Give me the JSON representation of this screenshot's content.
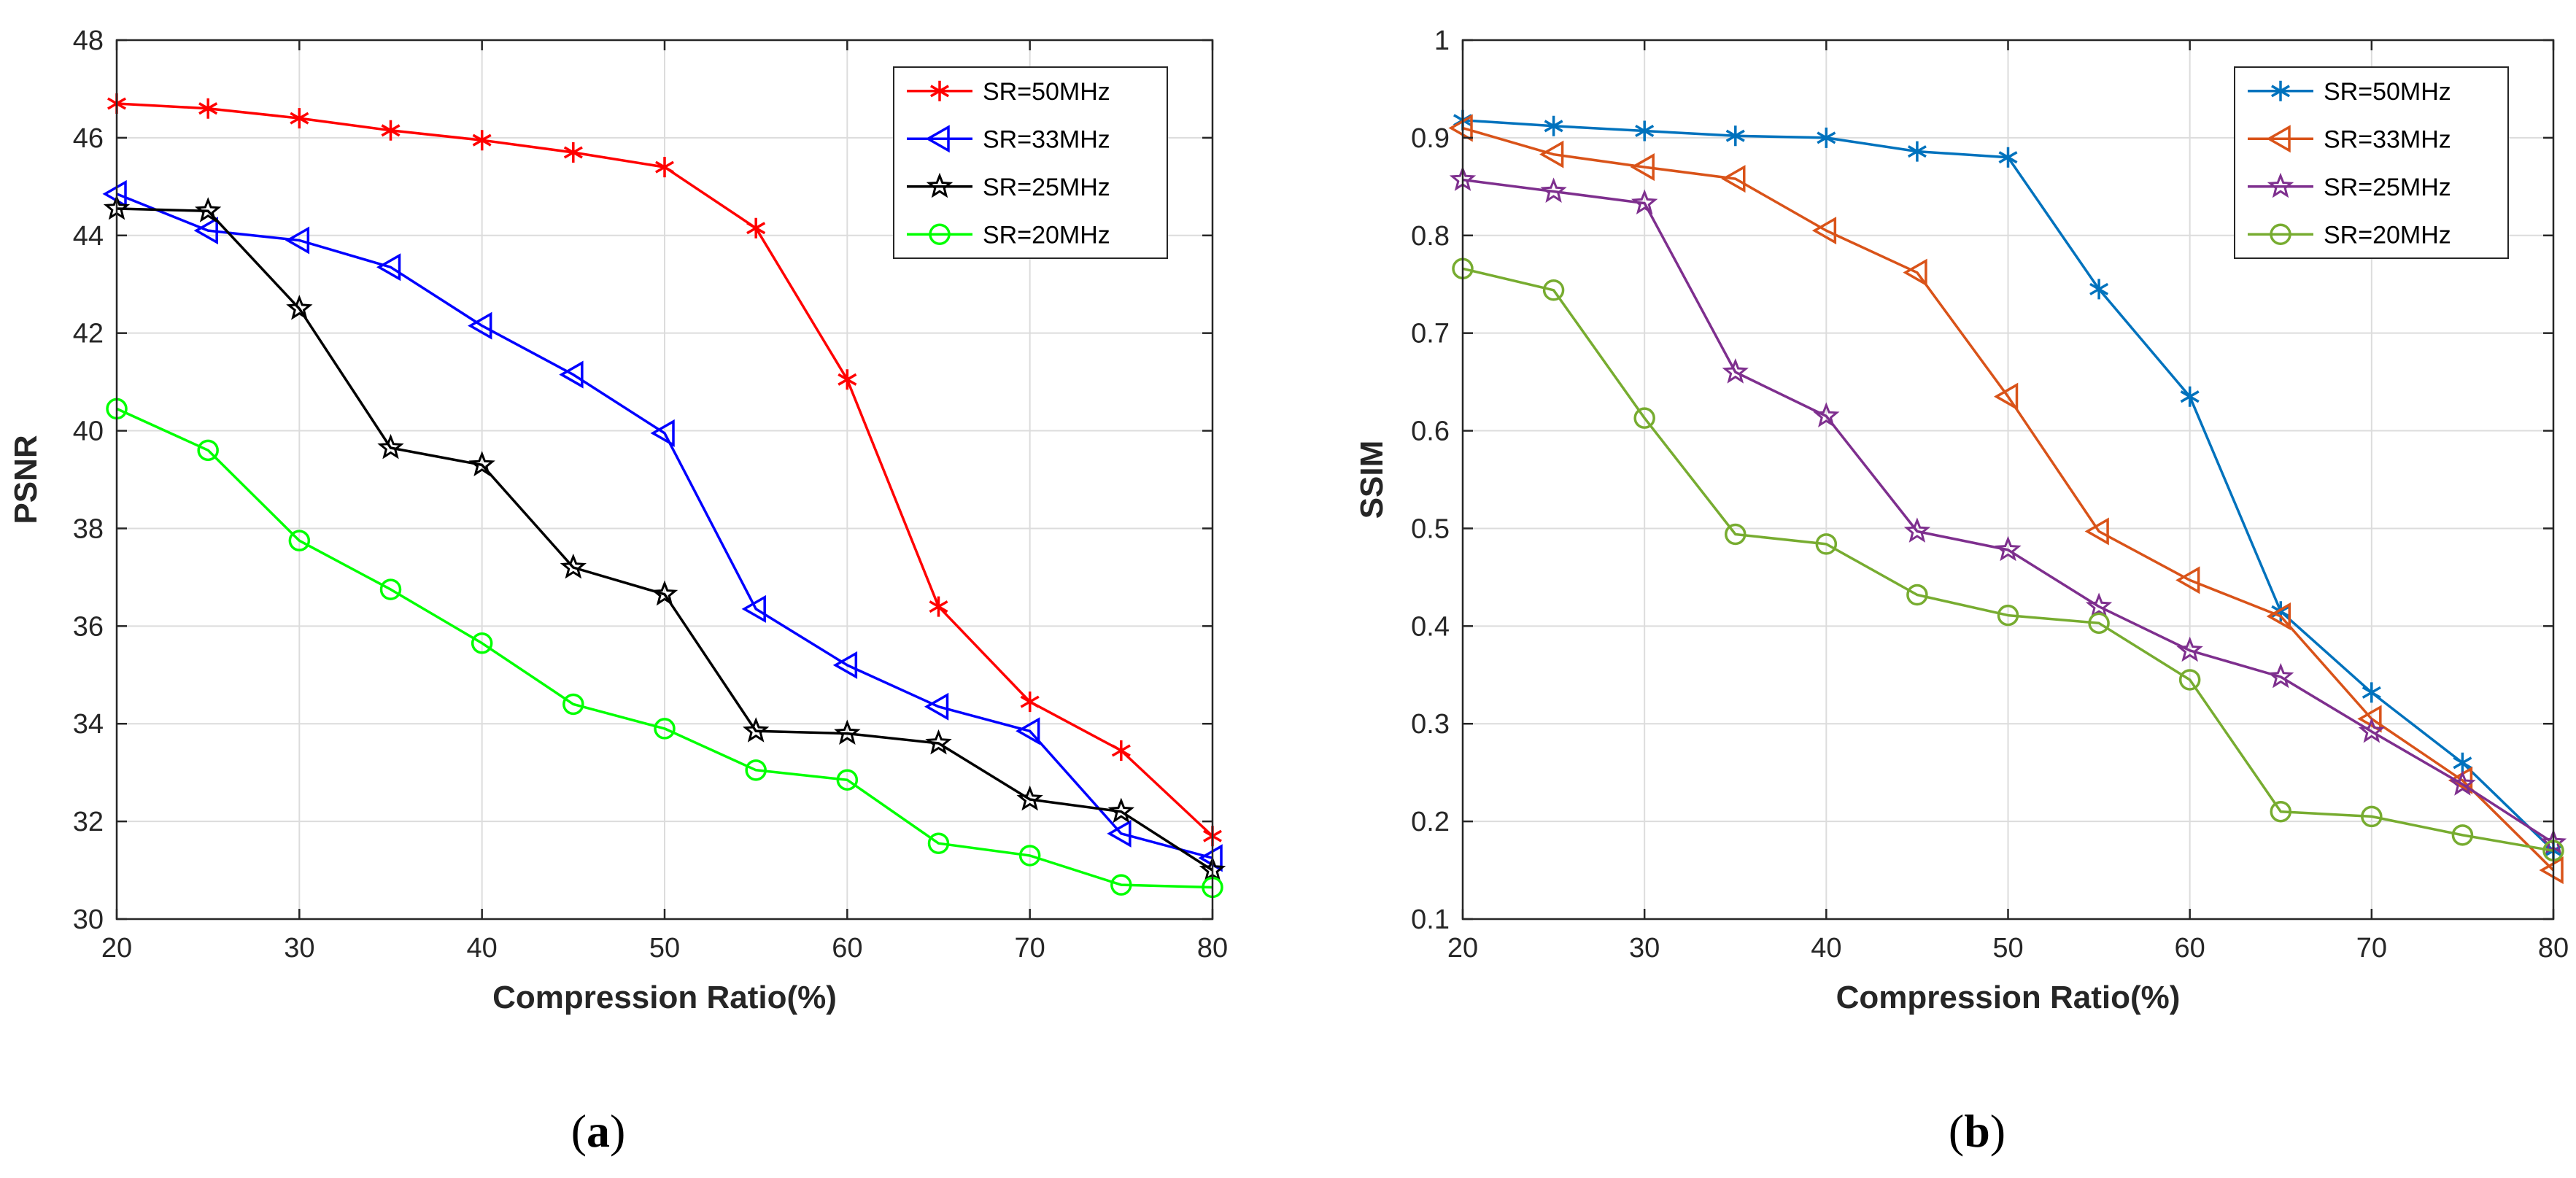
{
  "chart_data": [
    {
      "type": "line",
      "panel_label": "(a)",
      "panel_letter": "a",
      "xlabel": "Compression Ratio(%)",
      "ylabel": "PSNR",
      "xlim": [
        20,
        80
      ],
      "ylim": [
        30,
        48
      ],
      "xticks": [
        20,
        30,
        40,
        50,
        60,
        70,
        80
      ],
      "yticks": [
        30,
        32,
        34,
        36,
        38,
        40,
        42,
        44,
        46,
        48
      ],
      "grid": true,
      "legend_position": "top-right",
      "x": [
        20,
        25,
        30,
        35,
        40,
        45,
        50,
        55,
        60,
        65,
        70,
        75,
        80
      ],
      "series": [
        {
          "name": "SR=50MHz",
          "color": "#ff0000",
          "marker": "asterisk",
          "values": [
            46.7,
            46.6,
            46.4,
            46.15,
            45.95,
            45.7,
            45.4,
            44.15,
            41.05,
            36.4,
            34.45,
            33.45,
            31.7
          ]
        },
        {
          "name": "SR=33MHz",
          "color": "#0000ff",
          "marker": "triangle-left",
          "values": [
            44.85,
            44.1,
            43.9,
            43.35,
            42.15,
            41.15,
            39.95,
            36.35,
            35.2,
            34.35,
            33.85,
            31.75,
            31.25
          ]
        },
        {
          "name": "SR=25MHz",
          "color": "#000000",
          "marker": "pentagram",
          "values": [
            44.55,
            44.5,
            42.5,
            39.65,
            39.3,
            37.2,
            36.65,
            33.85,
            33.8,
            33.6,
            32.45,
            32.2,
            31.0
          ]
        },
        {
          "name": "SR=20MHz",
          "color": "#00ff00",
          "marker": "circle",
          "values": [
            40.45,
            39.6,
            37.75,
            36.75,
            35.65,
            34.4,
            33.9,
            33.05,
            32.85,
            31.55,
            31.3,
            30.7,
            30.65
          ]
        }
      ]
    },
    {
      "type": "line",
      "panel_label": "(b)",
      "panel_letter": "b",
      "xlabel": "Compression Ratio(%)",
      "ylabel": "SSIM",
      "xlim": [
        20,
        80
      ],
      "ylim": [
        0.1,
        1.0
      ],
      "xticks": [
        20,
        30,
        40,
        50,
        60,
        70,
        80
      ],
      "yticks": [
        0.1,
        0.2,
        0.3,
        0.4,
        0.5,
        0.6,
        0.7,
        0.8,
        0.9,
        1
      ],
      "grid": true,
      "legend_position": "top-right",
      "x": [
        20,
        25,
        30,
        35,
        40,
        45,
        50,
        55,
        60,
        65,
        70,
        75,
        80
      ],
      "series": [
        {
          "name": "SR=50MHz",
          "color": "#0072bd",
          "marker": "asterisk",
          "values": [
            0.918,
            0.912,
            0.907,
            0.902,
            0.9,
            0.886,
            0.88,
            0.745,
            0.635,
            0.415,
            0.332,
            0.26,
            0.17
          ]
        },
        {
          "name": "SR=33MHz",
          "color": "#d95319",
          "marker": "triangle-left",
          "values": [
            0.91,
            0.883,
            0.87,
            0.858,
            0.805,
            0.762,
            0.635,
            0.497,
            0.447,
            0.41,
            0.305,
            0.242,
            0.15
          ]
        },
        {
          "name": "SR=25MHz",
          "color": "#7e2f8e",
          "marker": "pentagram",
          "values": [
            0.857,
            0.845,
            0.833,
            0.66,
            0.615,
            0.497,
            0.478,
            0.42,
            0.375,
            0.348,
            0.292,
            0.238,
            0.178
          ]
        },
        {
          "name": "SR=20MHz",
          "color": "#77ac30",
          "marker": "circle",
          "values": [
            0.766,
            0.744,
            0.613,
            0.494,
            0.484,
            0.432,
            0.411,
            0.403,
            0.345,
            0.21,
            0.205,
            0.186,
            0.17
          ]
        }
      ]
    }
  ]
}
